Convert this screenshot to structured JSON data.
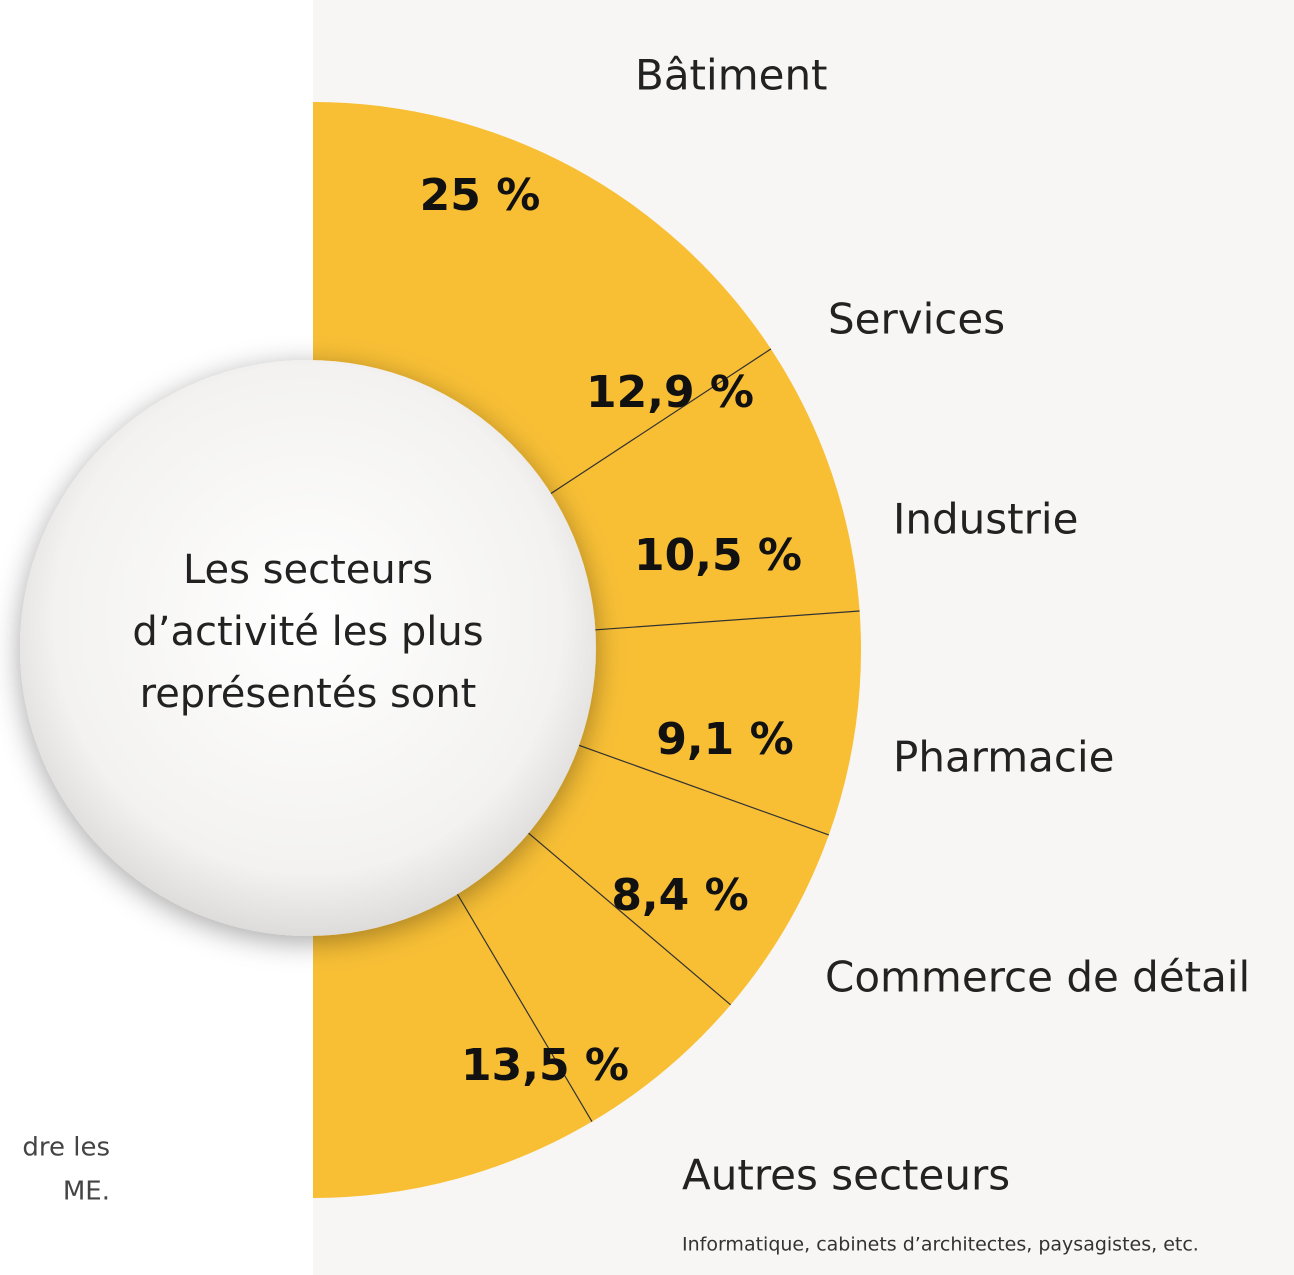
{
  "chart_data": {
    "type": "half-donut",
    "title": [
      "Les secteurs",
      "d’activité les plus",
      "représentés sont"
    ],
    "categories": [
      "Bâtiment",
      "Services",
      "Industrie",
      "Pharmacie",
      "Commerce de détail",
      "Autres secteurs"
    ],
    "values": [
      25,
      12.9,
      10.5,
      9.1,
      8.4,
      13.5
    ],
    "value_labels": [
      "25 %",
      "12,9 %",
      "10,5 %",
      "9,1 %",
      "8,4 %",
      "13,5 %"
    ],
    "color": "#f8bf35",
    "annotation": "Informatique, cabinets d’architectes, paysagistes, etc.",
    "side_text": [
      "dre les",
      "ME."
    ]
  }
}
